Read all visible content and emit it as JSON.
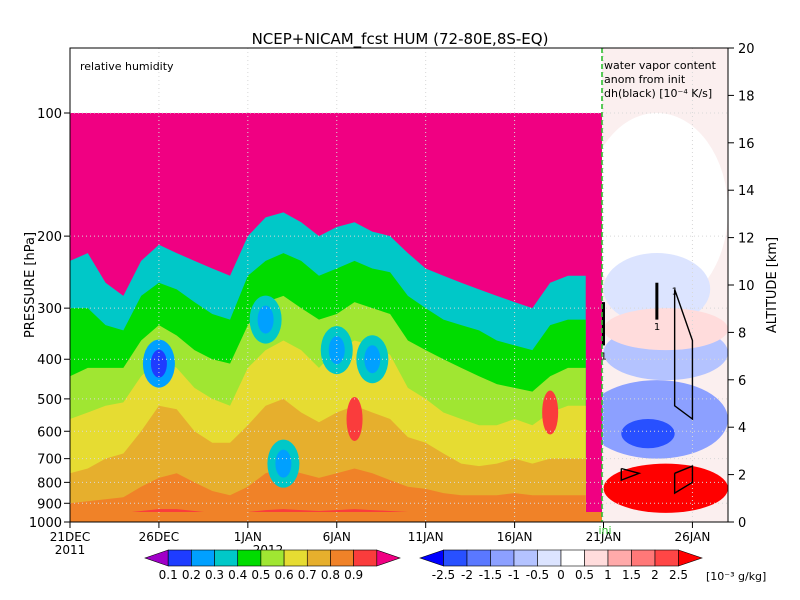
{
  "chart_data": {
    "type": "heatmap",
    "title": "NCEP+NICAM_fcst HUM (72-80E,8S-EQ)",
    "left_panel_label": "relative humidity",
    "right_panel_label_lines": [
      "water vapor content",
      "anom from init",
      "dh(black) [10⁻⁴ K/s]"
    ],
    "ylabel_left": "PRESSURE [hPa]",
    "ylabel_right": "ALTITUDE [km]",
    "init_label": "ini",
    "pressure_ticks": [
      100,
      200,
      300,
      400,
      500,
      600,
      700,
      800,
      900,
      1000
    ],
    "altitude_ticks": [
      0,
      2,
      4,
      6,
      8,
      10,
      12,
      14,
      16,
      18,
      20
    ],
    "altitude_range_km": [
      0,
      20
    ],
    "x_ticks": [
      "21DEC",
      "26DEC",
      "1JAN",
      "6JAN",
      "11JAN",
      "16JAN",
      "21JAN",
      "26JAN"
    ],
    "x_year_labels": [
      "2011",
      "2012"
    ],
    "date_range": [
      "2011-12-21",
      "2012-01-27"
    ],
    "init_date": "2012-01-19",
    "humidity_colorbar": {
      "levels": [
        "0.1",
        "0.2",
        "0.3",
        "0.4",
        "0.5",
        "0.6",
        "0.7",
        "0.8",
        "0.9"
      ],
      "colors": [
        "#a000c8",
        "#1e3cff",
        "#00a0ff",
        "#00c8c8",
        "#00dc00",
        "#a0e632",
        "#e6dc32",
        "#e6af2d",
        "#f08228",
        "#fa3c3c",
        "#f00082"
      ]
    },
    "anomaly_colorbar": {
      "levels": [
        "-2.5",
        "-2",
        "-1.5",
        "-1",
        "-0.5",
        "0",
        "0.5",
        "1",
        "1.5",
        "2",
        "2.5"
      ],
      "units": "[10⁻³ g/kg]",
      "colors": [
        "#0000ff",
        "#2850ff",
        "#5a78ff",
        "#8ca0ff",
        "#b4c3ff",
        "#dce4ff",
        "#ffffff",
        "#ffdcdc",
        "#ffaaaa",
        "#ff7878",
        "#ff4646",
        "#ff0000"
      ]
    },
    "humidity_sections": [
      {
        "date": "2011-12-21",
        "boundary_hPa": [
          1000,
          960,
          900,
          760,
          560,
          440,
          300,
          230
        ]
      },
      {
        "date": "2011-12-22",
        "boundary_hPa": [
          1000,
          960,
          890,
          740,
          540,
          420,
          300,
          220
        ]
      },
      {
        "date": "2011-12-23",
        "boundary_hPa": [
          1000,
          955,
          880,
          700,
          520,
          420,
          330,
          260
        ]
      },
      {
        "date": "2011-12-24",
        "boundary_hPa": [
          1000,
          950,
          870,
          680,
          510,
          420,
          340,
          280
        ]
      },
      {
        "date": "2011-12-25",
        "boundary_hPa": [
          1000,
          940,
          820,
          600,
          440,
          360,
          280,
          230
        ]
      },
      {
        "date": "2011-12-26",
        "boundary_hPa": [
          1000,
          930,
          780,
          520,
          400,
          330,
          260,
          210
        ]
      },
      {
        "date": "2011-12-27",
        "boundary_hPa": [
          1000,
          930,
          760,
          530,
          420,
          350,
          270,
          220
        ]
      },
      {
        "date": "2011-12-28",
        "boundary_hPa": [
          1000,
          940,
          800,
          600,
          470,
          380,
          290,
          230
        ]
      },
      {
        "date": "2011-12-29",
        "boundary_hPa": [
          1000,
          950,
          840,
          640,
          500,
          400,
          310,
          240
        ]
      },
      {
        "date": "2011-12-30",
        "boundary_hPa": [
          1000,
          950,
          860,
          640,
          520,
          410,
          320,
          250
        ]
      },
      {
        "date": "2011-12-31",
        "boundary_hPa": [
          1000,
          945,
          820,
          580,
          420,
          330,
          250,
          200
        ]
      },
      {
        "date": "2012-01-01",
        "boundary_hPa": [
          1000,
          935,
          760,
          520,
          380,
          290,
          230,
          180
        ]
      },
      {
        "date": "2012-01-02",
        "boundary_hPa": [
          1000,
          930,
          740,
          500,
          360,
          280,
          220,
          175
        ]
      },
      {
        "date": "2012-01-03",
        "boundary_hPa": [
          1000,
          935,
          760,
          540,
          380,
          300,
          230,
          185
        ]
      },
      {
        "date": "2012-01-04",
        "boundary_hPa": [
          1000,
          940,
          780,
          570,
          420,
          320,
          250,
          200
        ]
      },
      {
        "date": "2012-01-05",
        "boundary_hPa": [
          1000,
          935,
          760,
          540,
          380,
          310,
          240,
          190
        ]
      },
      {
        "date": "2012-01-06",
        "boundary_hPa": [
          1000,
          930,
          740,
          520,
          360,
          290,
          230,
          185
        ]
      },
      {
        "date": "2012-01-07",
        "boundary_hPa": [
          1000,
          935,
          760,
          540,
          370,
          300,
          240,
          195
        ]
      },
      {
        "date": "2012-01-08",
        "boundary_hPa": [
          1000,
          940,
          790,
          560,
          390,
          310,
          245,
          200
        ]
      },
      {
        "date": "2012-01-09",
        "boundary_hPa": [
          1000,
          945,
          820,
          620,
          470,
          360,
          280,
          220
        ]
      },
      {
        "date": "2012-01-10",
        "boundary_hPa": [
          1000,
          945,
          830,
          640,
          500,
          380,
          300,
          240
        ]
      },
      {
        "date": "2012-01-11",
        "boundary_hPa": [
          1000,
          950,
          850,
          680,
          540,
          400,
          320,
          250
        ]
      },
      {
        "date": "2012-01-12",
        "boundary_hPa": [
          1000,
          950,
          860,
          720,
          560,
          420,
          330,
          260
        ]
      },
      {
        "date": "2012-01-13",
        "boundary_hPa": [
          1000,
          950,
          860,
          730,
          580,
          440,
          340,
          270
        ]
      },
      {
        "date": "2012-01-14",
        "boundary_hPa": [
          1000,
          950,
          860,
          720,
          580,
          460,
          360,
          280
        ]
      },
      {
        "date": "2012-01-15",
        "boundary_hPa": [
          1000,
          950,
          850,
          700,
          560,
          470,
          370,
          290
        ]
      },
      {
        "date": "2012-01-16",
        "boundary_hPa": [
          1000,
          950,
          860,
          720,
          580,
          480,
          380,
          300
        ]
      },
      {
        "date": "2012-01-17",
        "boundary_hPa": [
          1000,
          950,
          860,
          700,
          540,
          440,
          330,
          260
        ]
      },
      {
        "date": "2012-01-18",
        "boundary_hPa": [
          1000,
          950,
          860,
          700,
          520,
          420,
          320,
          250
        ]
      },
      {
        "date": "2012-01-19",
        "boundary_hPa": [
          1000,
          950,
          860,
          700,
          520,
          420,
          320,
          250
        ]
      }
    ],
    "dry_minima": [
      {
        "date": "2011-12-26",
        "pressure_hPa": 410,
        "value": 0.2
      },
      {
        "date": "2012-01-01",
        "pressure_hPa": 320,
        "value": 0.3
      },
      {
        "date": "2012-01-05",
        "pressure_hPa": 380,
        "value": 0.3
      },
      {
        "date": "2012-01-07",
        "pressure_hPa": 400,
        "value": 0.3
      },
      {
        "date": "2012-01-02",
        "pressure_hPa": 720,
        "value": 0.3
      }
    ],
    "moist_pockets": [
      {
        "date": "2012-01-06",
        "pressure_hPa": 560,
        "value": 0.9
      },
      {
        "date": "2012-01-17",
        "pressure_hPa": 540,
        "value": 0.9
      }
    ],
    "dh_contour_label": "1",
    "anomaly_regions": [
      {
        "date_range": [
          "2012-01-19",
          "2012-01-27"
        ],
        "pressure_hPa": [
          100,
          300
        ],
        "value": 0.3
      },
      {
        "date_range": [
          "2012-01-20",
          "2012-01-26"
        ],
        "pressure_hPa": [
          220,
          330
        ],
        "value": -0.3
      },
      {
        "date_range": [
          "2012-01-20",
          "2012-01-27"
        ],
        "pressure_hPa": [
          330,
          450
        ],
        "value": -0.6
      },
      {
        "date_range": [
          "2012-01-19",
          "2012-01-27"
        ],
        "pressure_hPa": [
          450,
          700
        ],
        "value": -1.2
      },
      {
        "date_range": [
          "2012-01-21",
          "2012-01-24"
        ],
        "pressure_hPa": [
          560,
          660
        ],
        "value": -2.2
      },
      {
        "date_range": [
          "2012-01-20",
          "2012-01-27"
        ],
        "pressure_hPa": [
          300,
          380
        ],
        "value": 0.6
      },
      {
        "date_range": [
          "2012-01-20",
          "2012-01-27"
        ],
        "pressure_hPa": [
          720,
          950
        ],
        "value": 2.5
      }
    ]
  }
}
